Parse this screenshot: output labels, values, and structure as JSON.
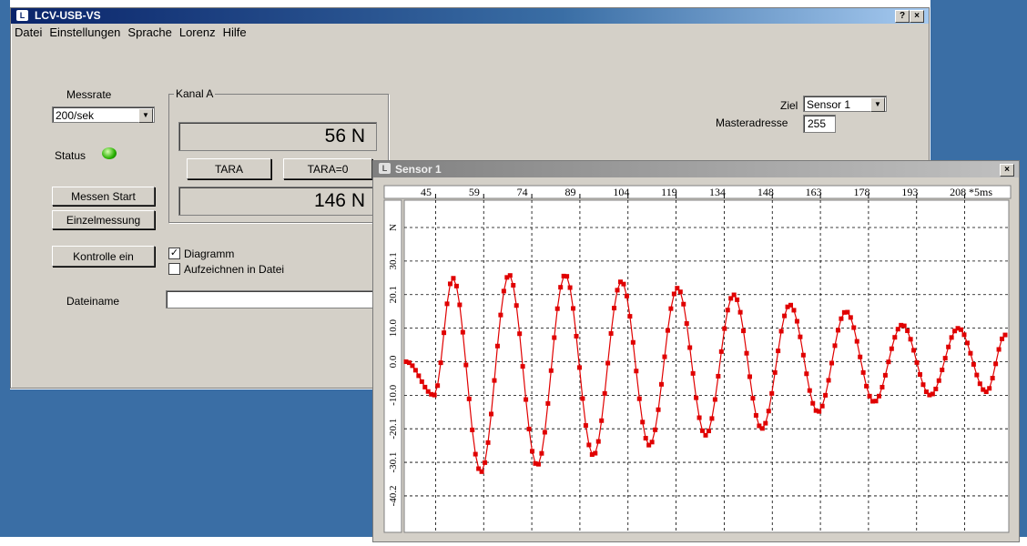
{
  "main_window": {
    "title": "LCV-USB-VS",
    "help_btn": "?",
    "close_btn": "×",
    "menu": [
      "Datei",
      "Einstellungen",
      "Sprache",
      "Lorenz",
      "Hilfe"
    ],
    "messrate_label": "Messrate",
    "messrate_value": "200/sek",
    "status_label": "Status",
    "status_color": "#28b000",
    "kanal_label": "Kanal A",
    "reading_1": "56 N",
    "reading_2": "146 N",
    "tara_btn": "TARA",
    "tara0_btn": "TARA=0",
    "messen_btn": "Messen Start",
    "einzel_btn": "Einzelmessung",
    "kontrolle_btn": "Kontrolle ein",
    "diagramm_label": "Diagramm",
    "diagramm_checked": true,
    "aufzeichnen_label": "Aufzeichnen in Datei",
    "aufzeichnen_checked": false,
    "dateiname_label": "Dateiname",
    "dateiname_value": "",
    "ziel_label": "Ziel",
    "ziel_value": "Sensor 1",
    "masteradresse_label": "Masteradresse",
    "masteradresse_value": "255"
  },
  "sensor_window": {
    "title": "Sensor 1",
    "close_btn": "×"
  },
  "chart_data": {
    "type": "line",
    "x_ticks": [
      "45",
      "59",
      "74",
      "89",
      "104",
      "119",
      "134",
      "148",
      "163",
      "178",
      "193",
      "208"
    ],
    "x_unit_label": "*5ms",
    "y_ticks": [
      "N",
      "30.1",
      "20.1",
      "10.0",
      "0.0",
      "-10.0",
      "-20.1",
      "-30.1",
      "-40.2"
    ],
    "ylim": [
      -40.2,
      40.2
    ],
    "grid": true,
    "line_color": "#e00000",
    "amplitude_envelope": [
      [
        0,
        0
      ],
      [
        3,
        -10
      ],
      [
        5,
        25
      ],
      [
        8,
        -33
      ],
      [
        11,
        26
      ],
      [
        14,
        -31
      ],
      [
        17,
        26
      ],
      [
        20,
        -28
      ],
      [
        23,
        24
      ],
      [
        26,
        -25
      ],
      [
        29,
        22
      ],
      [
        32,
        -22
      ],
      [
        35,
        20
      ],
      [
        38,
        -20
      ],
      [
        41,
        17
      ],
      [
        44,
        -15
      ],
      [
        47,
        15
      ],
      [
        50,
        -12
      ],
      [
        53,
        11
      ],
      [
        56,
        -10
      ],
      [
        59,
        10
      ],
      [
        62,
        -9
      ],
      [
        64,
        8
      ]
    ],
    "points": 190
  }
}
